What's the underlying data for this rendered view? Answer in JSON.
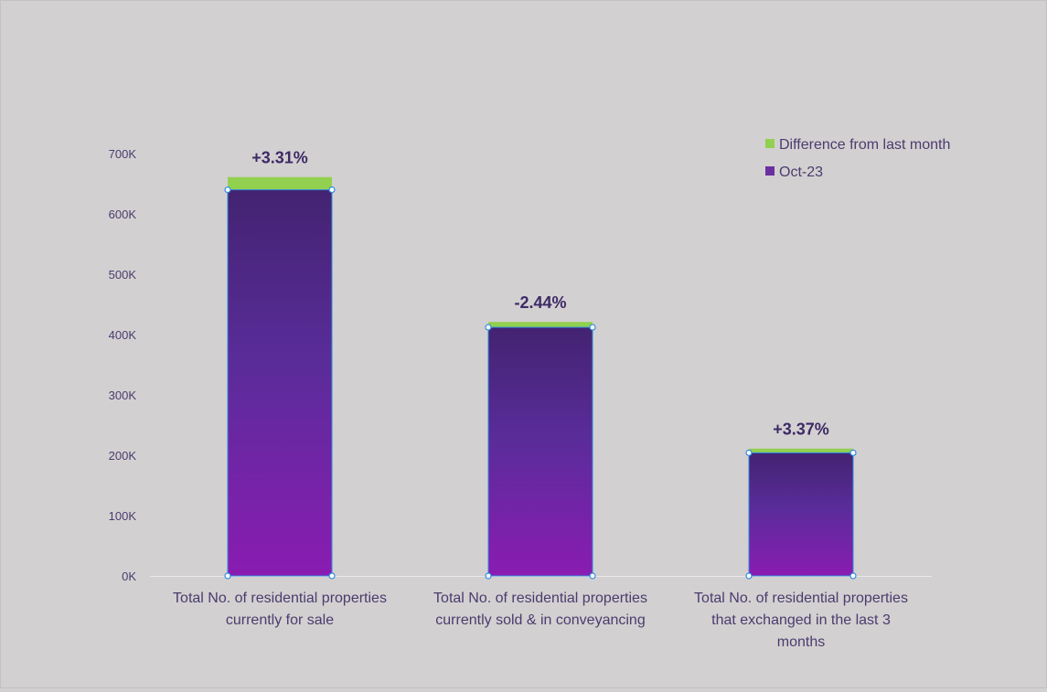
{
  "chart_data": {
    "type": "bar",
    "stacked": true,
    "categories": [
      [
        "Total No. of residential properties",
        "currently for sale"
      ],
      [
        "Total No. of residential properties",
        "currently sold & in conveyancing"
      ],
      [
        "Total No. of residential properties",
        "that exchanged in the last 3",
        "months"
      ]
    ],
    "series": [
      {
        "name": "Oct-23",
        "values": [
          640000,
          412000,
          204000
        ]
      },
      {
        "name": "Difference from last month",
        "values": [
          21000,
          9000,
          7000
        ]
      }
    ],
    "data_labels": [
      "+3.31%",
      "-2.44%",
      "+3.37%"
    ],
    "y_ticks": [
      "0K",
      "100K",
      "200K",
      "300K",
      "400K",
      "500K",
      "600K",
      "700K"
    ],
    "ylim": [
      0,
      700000
    ],
    "legend": {
      "position": "top-right",
      "items": [
        "Difference from last month",
        "Oct-23"
      ]
    },
    "colors": {
      "difference": "#92d050",
      "oct_top": "#432371",
      "oct_mid": "#5a2c9a",
      "oct_bottom": "#8a1cb2",
      "bar_outline": "#2f8be0",
      "legend_oct": "#6a2fa0"
    },
    "grid": false
  }
}
